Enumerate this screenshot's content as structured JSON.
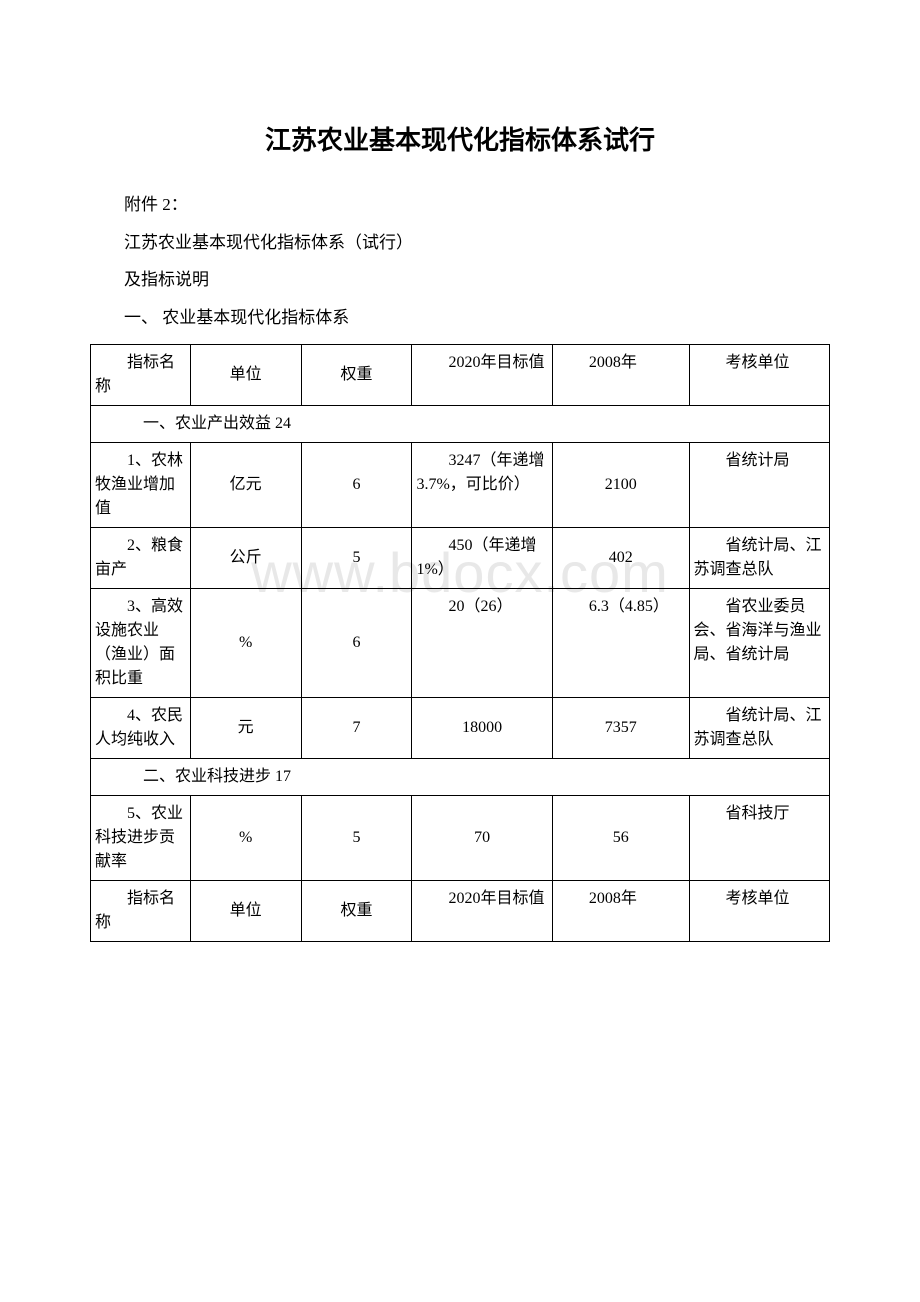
{
  "title": "江苏农业基本现代化指标体系试行",
  "intro": {
    "line1": "附件 2：",
    "line2": "江苏农业基本现代化指标体系（试行）",
    "line3": "及指标说明",
    "line4": "一、 农业基本现代化指标体系"
  },
  "watermark": "www.bdocx.com",
  "table": {
    "header": {
      "col1": "指标名称",
      "col2": "单位",
      "col3": "权重",
      "col4": "2020年目标值",
      "col5": "2008年",
      "col6": "考核单位"
    },
    "section1": "一、农业产出效益 24",
    "rows1": [
      {
        "name": "1、农林牧渔业增加值",
        "unit": "亿元",
        "weight": "6",
        "target": "3247（年递增3.7%，可比价）",
        "y2008": "2100",
        "assess": "省统计局"
      },
      {
        "name": "2、粮食亩产",
        "unit": "公斤",
        "weight": "5",
        "target": "450（年递增 1%）",
        "y2008": "402",
        "assess": "省统计局、江苏调查总队"
      },
      {
        "name": "3、高效设施农业（渔业）面积比重",
        "unit": "%",
        "weight": "6",
        "target": "20（26）",
        "y2008": "6.3（4.85）",
        "assess": "省农业委员会、省海洋与渔业局、省统计局"
      },
      {
        "name": "4、农民人均纯收入",
        "unit": "元",
        "weight": "7",
        "target": "18000",
        "y2008": "7357",
        "assess": "省统计局、江苏调查总队"
      }
    ],
    "section2": "二、农业科技进步  17",
    "rows2": [
      {
        "name": "5、农业科技进步贡献率",
        "unit": "%",
        "weight": "5",
        "target": "70",
        "y2008": "56",
        "assess": "省科技厅"
      }
    ],
    "header2": {
      "col1": "指标名称",
      "col2": "单位",
      "col3": "权重",
      "col4": "2020年目标值",
      "col5": "2008年",
      "col6": "考核单位"
    }
  }
}
